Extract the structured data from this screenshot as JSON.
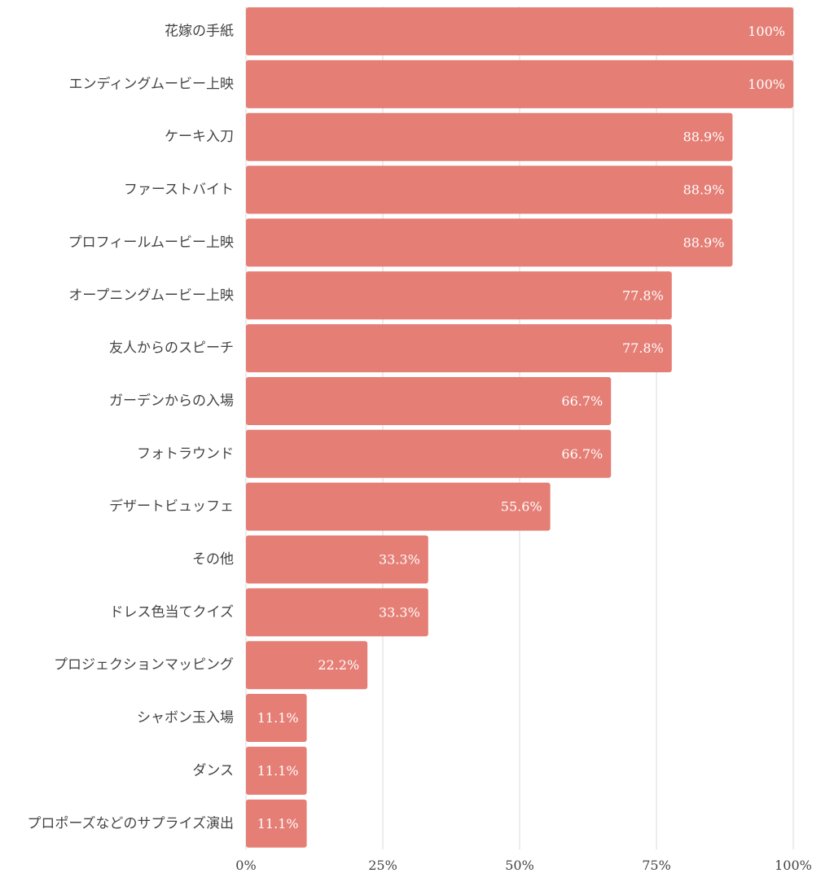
{
  "chart_data": {
    "type": "bar",
    "orientation": "horizontal",
    "categories": [
      "花嫁の手紙",
      "エンディングムービー上映",
      "ケーキ入刀",
      "ファーストバイト",
      "プロフィールムービー上映",
      "オープニングムービー上映",
      "友人からのスピーチ",
      "ガーデンからの入場",
      "フォトラウンド",
      "デザートビュッフェ",
      "その他",
      "ドレス色当てクイズ",
      "プロジェクションマッピング",
      "シャボン玉入場",
      "ダンス",
      "プロポーズなどのサプライズ演出"
    ],
    "values": [
      100,
      100,
      88.9,
      88.9,
      88.9,
      77.8,
      77.8,
      66.7,
      66.7,
      55.6,
      33.3,
      33.3,
      22.2,
      11.1,
      11.1,
      11.1
    ],
    "value_labels": [
      "100%",
      "100%",
      "88.9%",
      "88.9%",
      "88.9%",
      "77.8%",
      "77.8%",
      "66.7%",
      "66.7%",
      "55.6%",
      "33.3%",
      "33.3%",
      "22.2%",
      "11.1%",
      "11.1%",
      "11.1%"
    ],
    "xlim": [
      0,
      100
    ],
    "x_ticks": [
      0,
      25,
      50,
      75,
      100
    ],
    "x_tick_labels": [
      "0%",
      "25%",
      "50%",
      "75%",
      "100%"
    ],
    "grid": true,
    "bar_color": "#e57e75",
    "grid_color": "#e6e6e6"
  }
}
